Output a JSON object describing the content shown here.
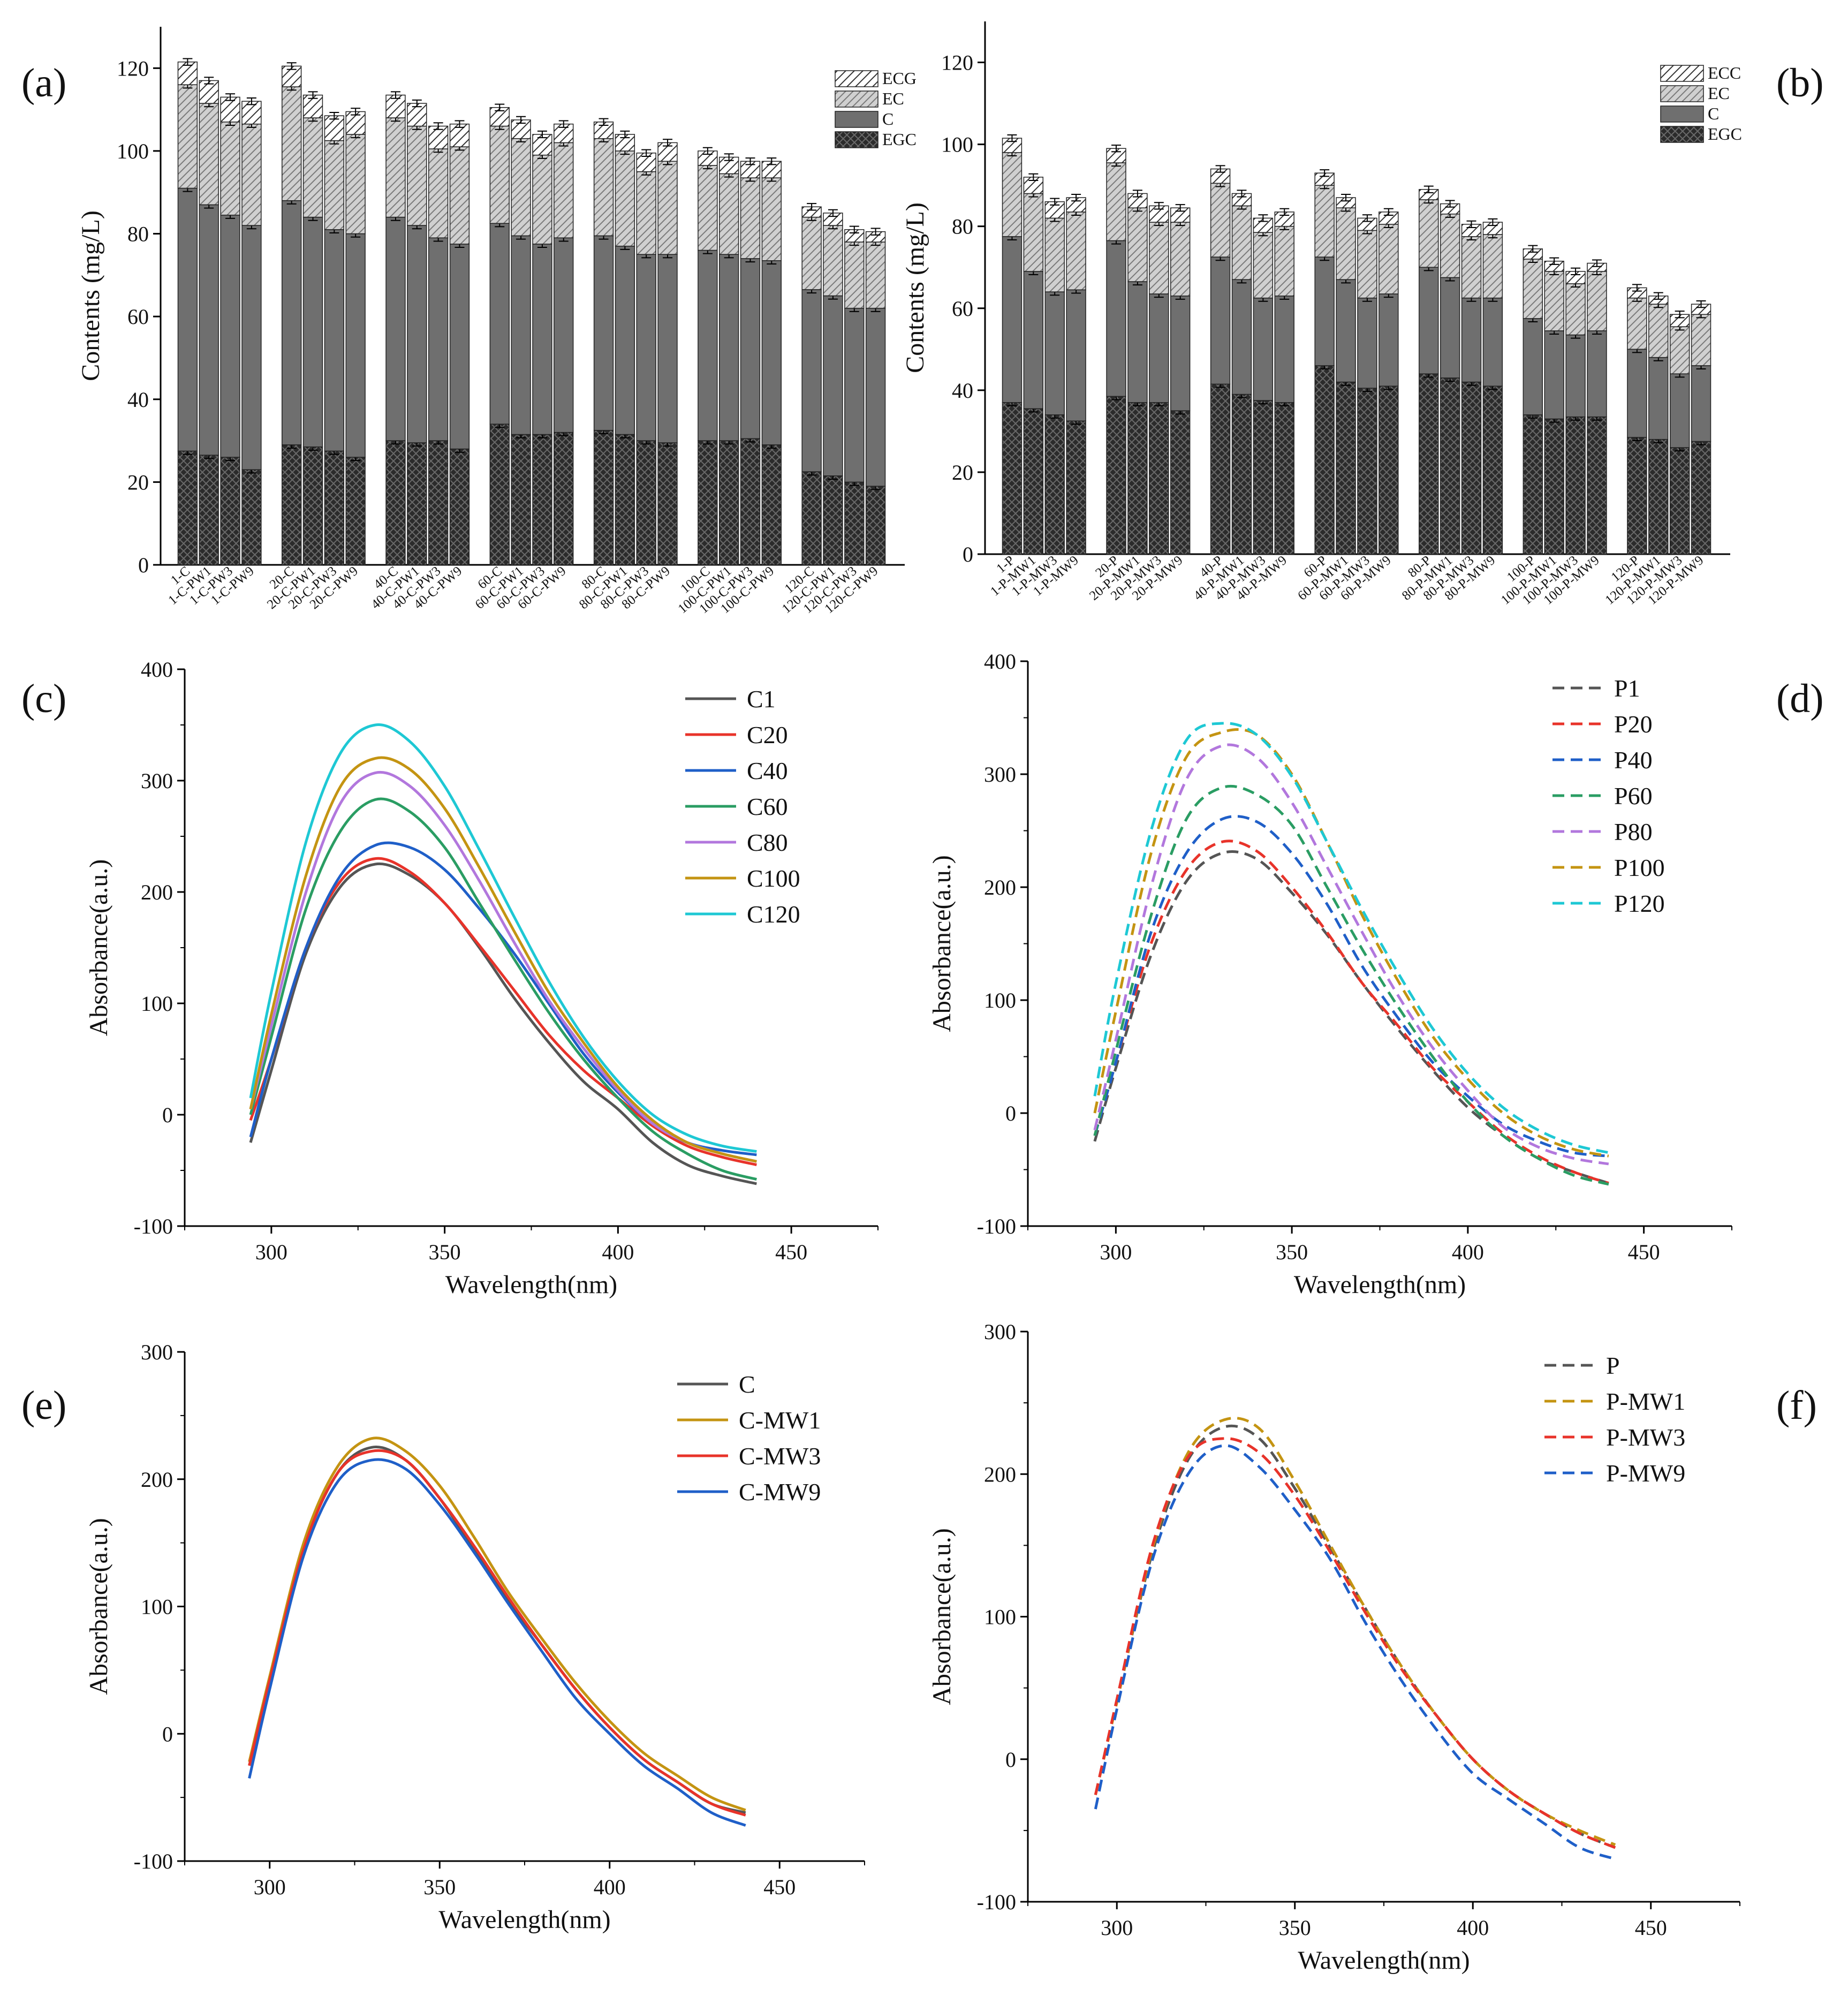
{
  "figure_labels": [
    "(a)",
    "(b)",
    "(c)",
    "(d)",
    "(e)",
    "(f)"
  ],
  "colors": {
    "EGC": "#2b2b2b",
    "C": "#6f6f6f",
    "EC": "#c9c9c9",
    "ECG": "#ffffff",
    "ECC": "#ffffff"
  },
  "chart_data": [
    {
      "panel": "(a)",
      "type": "bar",
      "stacked": true,
      "ylabel": "Contents (mg/L)",
      "ylim": [
        0,
        130
      ],
      "yticks": [
        0,
        20,
        40,
        60,
        80,
        100,
        120
      ],
      "legend": [
        "ECG",
        "EC",
        "C",
        "EGC"
      ],
      "legend_position": "top-right",
      "groups": [
        [
          "1-C",
          "1-C-PW1",
          "1-C-PW3",
          "1-C-PW9"
        ],
        [
          "20-C",
          "20-C-PW1",
          "20-C-PW3",
          "20-C-PW9"
        ],
        [
          "40-C",
          "40-C-PW1",
          "40-C-PW3",
          "40-C-PW9"
        ],
        [
          "60-C",
          "60-C-PW1",
          "60-C-PW3",
          "60-C-PW9"
        ],
        [
          "80-C",
          "80-C-PW1",
          "80-C-PW3",
          "80-C-PW9"
        ],
        [
          "100-C",
          "100-C-PW1",
          "100-C-PW3",
          "100-C-PW9"
        ],
        [
          "120-C",
          "120-C-PW1",
          "120-C-PW3",
          "120-C-PW9"
        ]
      ],
      "series": [
        {
          "name": "EGC",
          "values": [
            27.5,
            26.5,
            26,
            23,
            29,
            28.5,
            27.5,
            26,
            30,
            29.5,
            30,
            28,
            34,
            31.5,
            31.5,
            32,
            32.5,
            31.5,
            30,
            29.5,
            30,
            30,
            30.5,
            29,
            22.5,
            21.5,
            20,
            19
          ]
        },
        {
          "name": "C",
          "values": [
            63.5,
            60.5,
            58.5,
            59,
            59,
            55.5,
            53.5,
            54,
            54,
            52.5,
            49,
            49.5,
            48.5,
            48,
            46,
            47,
            47,
            45.5,
            45,
            45.5,
            46,
            45,
            43.5,
            44.5,
            44,
            43.5,
            42,
            43
          ]
        },
        {
          "name": "EC",
          "values": [
            25,
            24.5,
            22.5,
            24.5,
            27.5,
            24,
            21.5,
            24,
            24,
            24,
            21.5,
            23.5,
            23.5,
            23.5,
            21.5,
            23,
            23.5,
            23,
            20,
            22.5,
            20.5,
            19.5,
            19.5,
            20,
            17.5,
            17,
            16,
            16
          ]
        },
        {
          "name": "ECG",
          "values": [
            5.5,
            5.5,
            6,
            5.5,
            5,
            5.5,
            6,
            5.5,
            5.5,
            5.5,
            5.5,
            5.5,
            4.5,
            4.5,
            5,
            4.5,
            4,
            4,
            4.5,
            4.5,
            3.5,
            4,
            4,
            4,
            2.5,
            3,
            3,
            2.5
          ]
        }
      ],
      "error_bars": 0.8
    },
    {
      "panel": "(b)",
      "type": "bar",
      "stacked": true,
      "ylabel": "Contents (mg/L)",
      "ylim": [
        0,
        130
      ],
      "yticks": [
        0,
        20,
        40,
        60,
        80,
        100,
        120
      ],
      "legend": [
        "ECC",
        "EC",
        "C",
        "EGC"
      ],
      "legend_position": "top-right",
      "groups": [
        [
          "1-P",
          "1-P-MW1",
          "1-P-MW3",
          "1-P-MW9"
        ],
        [
          "20-P",
          "20-P-MW1",
          "20-P-MW3",
          "20-P-MW9"
        ],
        [
          "40-P",
          "40-P-MW1",
          "40-P-MW3",
          "40-P-MW9"
        ],
        [
          "60-P",
          "60-P-MW1",
          "60-P-MW3",
          "60-P-MW9"
        ],
        [
          "80-P",
          "80-P-MW1",
          "80-P-MW3",
          "80-P-MW9"
        ],
        [
          "100-P",
          "100-P-MW1",
          "100-P-MW3",
          "100-P-MW9"
        ],
        [
          "120-P",
          "120-P-MW1",
          "120-P-MW3",
          "120-P-MW9"
        ]
      ],
      "series": [
        {
          "name": "EGC",
          "values": [
            37,
            35.5,
            34,
            32.5,
            38.5,
            37,
            37,
            35,
            41.5,
            39,
            37.5,
            37,
            46,
            42,
            40.5,
            41,
            44,
            43,
            42,
            41,
            34,
            33,
            33.5,
            33.5,
            28.5,
            28,
            26,
            27.5
          ]
        },
        {
          "name": "C",
          "values": [
            40.5,
            33.5,
            30,
            32,
            38,
            29.5,
            26.5,
            28,
            31,
            28,
            25,
            26,
            26.5,
            25,
            22,
            22.5,
            26,
            24.5,
            20.5,
            21.5,
            23.5,
            21.5,
            20,
            21,
            21.5,
            20,
            18,
            18.5
          ]
        },
        {
          "name": "EC",
          "values": [
            20.5,
            19,
            18,
            19,
            19,
            18,
            17.5,
            18,
            18,
            18,
            16,
            17,
            17.5,
            17.5,
            16.5,
            17,
            16.5,
            15.5,
            15,
            15.5,
            14.5,
            14.5,
            12.5,
            14.5,
            12.5,
            13,
            11.5,
            12.5
          ]
        },
        {
          "name": "ECC",
          "values": [
            3.5,
            4,
            4,
            3.5,
            3.5,
            3.5,
            4,
            3.5,
            3.5,
            3,
            3.5,
            3.5,
            3,
            2.5,
            3,
            3,
            2.5,
            2.5,
            3,
            3,
            2.5,
            2.5,
            3,
            2,
            2.5,
            2,
            3,
            2.5
          ]
        }
      ],
      "error_bars": 0.8
    },
    {
      "panel": "(c)",
      "type": "line",
      "xlabel": "Wavelength(nm)",
      "ylabel": "Absorbance(a.u.)",
      "xlim": [
        275,
        475
      ],
      "ylim": [
        -100,
        400
      ],
      "xticks": [
        300,
        350,
        400,
        450
      ],
      "yticks": [
        -100,
        0,
        100,
        200,
        300,
        400
      ],
      "x": [
        294,
        300,
        310,
        320,
        330,
        340,
        350,
        360,
        370,
        380,
        390,
        400,
        410,
        420,
        430,
        440
      ],
      "series": [
        {
          "name": "C1",
          "color": "#555555",
          "dash": false,
          "values": [
            -25,
            40,
            145,
            205,
            225,
            215,
            190,
            150,
            105,
            65,
            30,
            5,
            -25,
            -45,
            -55,
            -62
          ]
        },
        {
          "name": "C20",
          "color": "#e8332a",
          "dash": false,
          "values": [
            -5,
            50,
            150,
            210,
            230,
            218,
            190,
            152,
            112,
            72,
            40,
            15,
            -10,
            -28,
            -38,
            -45
          ]
        },
        {
          "name": "C40",
          "color": "#1f5fc8",
          "dash": false,
          "values": [
            -20,
            50,
            150,
            215,
            242,
            240,
            220,
            185,
            145,
            100,
            55,
            20,
            -8,
            -25,
            -32,
            -36
          ]
        },
        {
          "name": "C60",
          "color": "#2a9d63",
          "dash": false,
          "values": [
            0,
            70,
            185,
            255,
            283,
            272,
            240,
            190,
            140,
            92,
            50,
            15,
            -15,
            -35,
            -50,
            -58
          ]
        },
        {
          "name": "C80",
          "color": "#b277dd",
          "dash": false,
          "values": [
            5,
            80,
            200,
            280,
            307,
            295,
            260,
            210,
            155,
            103,
            60,
            22,
            -8,
            -25,
            -35,
            -42
          ]
        },
        {
          "name": "C100",
          "color": "#c49412",
          "dash": false,
          "values": [
            5,
            90,
            215,
            295,
            320,
            310,
            275,
            222,
            165,
            110,
            65,
            25,
            -5,
            -25,
            -35,
            -42
          ]
        },
        {
          "name": "C120",
          "color": "#1ec8d4",
          "dash": false,
          "values": [
            15,
            110,
            245,
            325,
            350,
            335,
            295,
            238,
            178,
            120,
            70,
            30,
            0,
            -18,
            -28,
            -33
          ]
        }
      ]
    },
    {
      "panel": "(d)",
      "type": "line",
      "xlabel": "Wavelength(nm)",
      "ylabel": "Absorbance(a.u.)",
      "xlim": [
        275,
        475
      ],
      "ylim": [
        -100,
        400
      ],
      "xticks": [
        300,
        350,
        400,
        450
      ],
      "yticks": [
        -100,
        0,
        100,
        200,
        300,
        400
      ],
      "x": [
        294,
        300,
        310,
        320,
        330,
        340,
        350,
        360,
        370,
        380,
        390,
        400,
        410,
        420,
        430,
        440
      ],
      "series": [
        {
          "name": "P1",
          "color": "#555555",
          "dash": true,
          "values": [
            -25,
            40,
            140,
            205,
            230,
            225,
            195,
            158,
            115,
            75,
            38,
            5,
            -20,
            -40,
            -52,
            -62
          ]
        },
        {
          "name": "P20",
          "color": "#e8332a",
          "dash": true,
          "values": [
            -20,
            45,
            150,
            215,
            240,
            232,
            200,
            160,
            115,
            78,
            40,
            10,
            -18,
            -38,
            -52,
            -62
          ]
        },
        {
          "name": "P40",
          "color": "#1f5fc8",
          "dash": true,
          "values": [
            -20,
            45,
            160,
            230,
            260,
            258,
            230,
            185,
            130,
            85,
            45,
            15,
            -10,
            -25,
            -35,
            -38
          ]
        },
        {
          "name": "P60",
          "color": "#2a9d63",
          "dash": true,
          "values": [
            -20,
            55,
            175,
            260,
            288,
            282,
            255,
            200,
            145,
            95,
            50,
            10,
            -20,
            -40,
            -55,
            -63
          ]
        },
        {
          "name": "P80",
          "color": "#b277dd",
          "dash": true,
          "values": [
            -15,
            65,
            200,
            295,
            325,
            315,
            275,
            218,
            160,
            105,
            58,
            20,
            -12,
            -30,
            -40,
            -45
          ]
        },
        {
          "name": "P100",
          "color": "#c49412",
          "dash": true,
          "values": [
            0,
            90,
            230,
            315,
            337,
            335,
            300,
            240,
            175,
            118,
            68,
            30,
            0,
            -20,
            -32,
            -38
          ]
        },
        {
          "name": "P120",
          "color": "#1ec8d4",
          "dash": true,
          "values": [
            15,
            115,
            250,
            330,
            345,
            335,
            298,
            240,
            180,
            125,
            75,
            35,
            5,
            -15,
            -28,
            -35
          ]
        }
      ]
    },
    {
      "panel": "(e)",
      "type": "line",
      "xlabel": "Wavelength(nm)",
      "ylabel": "Absorbance(a.u.)",
      "xlim": [
        275,
        475
      ],
      "ylim": [
        -100,
        300
      ],
      "xticks": [
        300,
        350,
        400,
        450
      ],
      "yticks": [
        -100,
        0,
        100,
        200,
        300
      ],
      "x": [
        294,
        300,
        310,
        320,
        330,
        340,
        350,
        360,
        370,
        380,
        390,
        400,
        410,
        420,
        430,
        440
      ],
      "series": [
        {
          "name": "C",
          "color": "#555555",
          "dash": false,
          "values": [
            -25,
            40,
            145,
            205,
            225,
            215,
            185,
            145,
            105,
            70,
            35,
            5,
            -20,
            -38,
            -55,
            -62
          ]
        },
        {
          "name": "C-MW1",
          "color": "#c49412",
          "dash": false,
          "values": [
            -22,
            45,
            150,
            210,
            232,
            222,
            195,
            155,
            112,
            75,
            40,
            10,
            -15,
            -33,
            -50,
            -60
          ]
        },
        {
          "name": "C-MW3",
          "color": "#e8332a",
          "dash": false,
          "values": [
            -25,
            42,
            145,
            205,
            222,
            215,
            185,
            148,
            108,
            70,
            35,
            5,
            -20,
            -38,
            -55,
            -64
          ]
        },
        {
          "name": "C-MW9",
          "color": "#1f5fc8",
          "dash": false,
          "values": [
            -35,
            35,
            140,
            198,
            215,
            208,
            180,
            143,
            103,
            65,
            28,
            0,
            -25,
            -43,
            -62,
            -72
          ]
        }
      ]
    },
    {
      "panel": "(f)",
      "type": "line",
      "xlabel": "Wavelength(nm)",
      "ylabel": "Absorbance(a.u.)",
      "xlim": [
        275,
        475
      ],
      "ylim": [
        -100,
        300
      ],
      "xticks": [
        300,
        350,
        400,
        450
      ],
      "yticks": [
        -100,
        0,
        100,
        200,
        300
      ],
      "x": [
        294,
        300,
        310,
        320,
        330,
        340,
        350,
        360,
        370,
        380,
        390,
        400,
        410,
        420,
        430,
        440
      ],
      "series": [
        {
          "name": "P",
          "color": "#555555",
          "dash": true,
          "values": [
            -25,
            40,
            145,
            210,
            233,
            225,
            190,
            148,
            105,
            65,
            30,
            0,
            -22,
            -38,
            -52,
            -62
          ]
        },
        {
          "name": "P-MW1",
          "color": "#c49412",
          "dash": true,
          "values": [
            -25,
            40,
            148,
            215,
            238,
            232,
            195,
            150,
            105,
            65,
            30,
            0,
            -22,
            -38,
            -50,
            -60
          ]
        },
        {
          "name": "P-MW3",
          "color": "#e8332a",
          "dash": true,
          "values": [
            -25,
            42,
            150,
            212,
            225,
            215,
            185,
            145,
            102,
            63,
            30,
            0,
            -22,
            -38,
            -52,
            -62
          ]
        },
        {
          "name": "P-MW9",
          "color": "#1f5fc8",
          "dash": true,
          "values": [
            -35,
            35,
            140,
            200,
            220,
            205,
            175,
            140,
            95,
            55,
            20,
            -10,
            -28,
            -45,
            -62,
            -70
          ]
        }
      ]
    }
  ]
}
